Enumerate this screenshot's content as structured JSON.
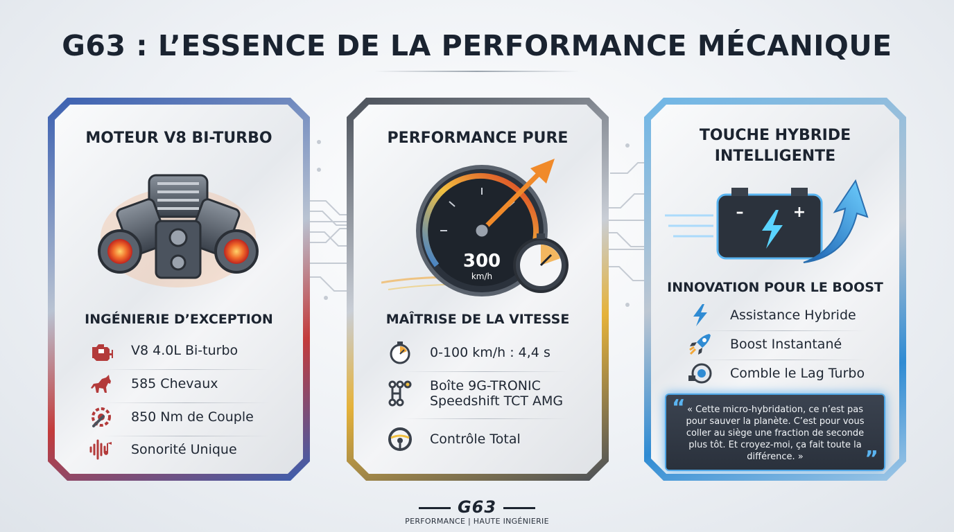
{
  "title": "G63 : L’ESSENCE DE LA PERFORMANCE MÉCANIQUE",
  "cards": [
    {
      "title": "MOTEUR V8 BI-TURBO",
      "illustration": "twin-turbo-v8-engine-illustration",
      "section_title": "INGÉNIERIE D’EXCEPTION",
      "accent": "#c33b3b",
      "features": [
        {
          "icon": "engine-warning-icon",
          "label": "V8 4.0L Bi-turbo"
        },
        {
          "icon": "horse-icon",
          "label": "585 Chevaux"
        },
        {
          "icon": "wrench-gear-icon",
          "label": "850 Nm de Couple"
        },
        {
          "icon": "sound-wave-icon",
          "label": "Sonorité Unique"
        }
      ]
    },
    {
      "title": "PERFORMANCE PURE",
      "illustration": "speedometer-illustration",
      "gauge_value": "300",
      "gauge_unit": "km/h",
      "section_title": "MAÎTRISE DE LA VITESSE",
      "accent": "#e5b23a",
      "features": [
        {
          "icon": "stopwatch-icon",
          "label": "0-100 km/h : 4,4 s"
        },
        {
          "icon": "gear-shift-icon",
          "label_line1": "Boîte 9G-TRONIC",
          "label_line2": "Speedshift TCT AMG"
        },
        {
          "icon": "steering-wheel-icon",
          "label": "Contrôle Total"
        }
      ]
    },
    {
      "title_line1": "TOUCHE HYBRIDE",
      "title_line2": "INTELLIGENTE",
      "illustration": "battery-boost-illustration",
      "section_title": "INNOVATION POUR LE BOOST",
      "accent": "#2f8bd3",
      "features": [
        {
          "icon": "lightning-icon",
          "label": "Assistance Hybride"
        },
        {
          "icon": "rocket-icon",
          "label": "Boost Instantané"
        },
        {
          "icon": "turbo-icon",
          "label": "Comble le Lag Turbo"
        }
      ],
      "quote": "« Cette micro-hybridation, ce n’est pas pour sauver la planète. C’est pour vous coller au siège une fraction de seconde plus tôt. Et croyez-moi, ça fait toute la différence. »"
    }
  ],
  "footer": {
    "logo": "G63",
    "subtitle": "PERFORMANCE | HAUTE INGÉNIERIE"
  }
}
